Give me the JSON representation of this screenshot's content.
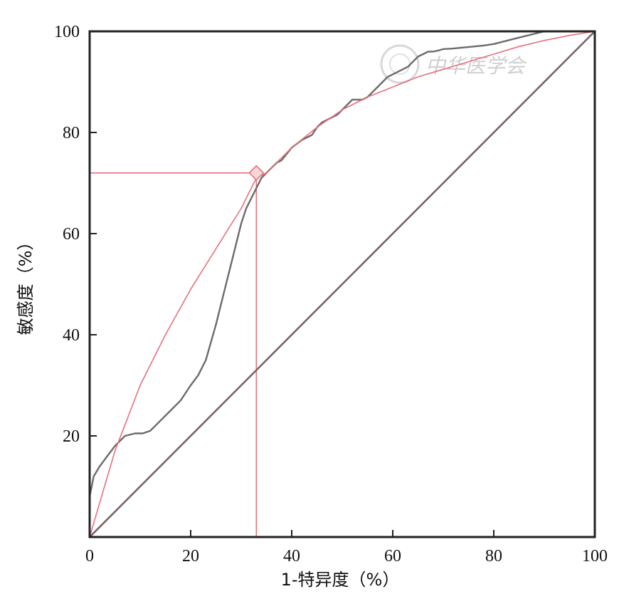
{
  "chart_data": {
    "type": "line",
    "title": "",
    "xlabel": "1-特异度（%）",
    "ylabel": "敏感度（%）",
    "xlim": [
      0,
      100
    ],
    "ylim": [
      0,
      100
    ],
    "x_ticks": [
      0,
      20,
      40,
      60,
      80,
      100
    ],
    "y_ticks": [
      20,
      40,
      60,
      80,
      100
    ],
    "grid": false,
    "watermark": "中华医学会",
    "colors": {
      "empirical": "#6e6a6a",
      "fitted": "#e8707a",
      "reference": "#7a6468",
      "cutoff": "#e8707a",
      "axis": "#222222"
    },
    "series": [
      {
        "style": "empirical",
        "x": [
          0,
          0.8,
          2,
          3.5,
          5,
          7,
          9,
          10.5,
          12,
          14,
          16,
          18,
          20,
          21.5,
          23,
          25,
          27,
          28.5,
          30,
          31,
          32,
          33,
          34,
          35,
          36,
          37,
          38,
          40,
          42,
          44,
          45,
          46,
          47,
          48,
          49,
          50,
          51,
          52,
          53,
          54,
          55,
          56,
          57,
          58,
          59,
          60,
          61,
          62,
          63,
          64,
          65,
          66,
          67,
          68,
          69,
          70,
          72,
          74,
          76,
          78,
          80,
          82,
          84,
          86,
          88,
          90,
          92,
          93
        ],
        "y": [
          8,
          12,
          14,
          16,
          18,
          20,
          20.5,
          20.5,
          21,
          23,
          25,
          27,
          30,
          32,
          35,
          42,
          50,
          56,
          62,
          65,
          67,
          69,
          71,
          72,
          73,
          74,
          74.5,
          77,
          78.5,
          79.5,
          81,
          82,
          82.5,
          83,
          83.5,
          84.5,
          85.5,
          86.5,
          86.5,
          86.5,
          87,
          88,
          89,
          90,
          91,
          91.5,
          92,
          92.5,
          93,
          94,
          95,
          95.5,
          96,
          96,
          96.2,
          96.5,
          96.6,
          96.8,
          97,
          97.2,
          97.5,
          98,
          98.5,
          99,
          99.5,
          100,
          100,
          100
        ]
      },
      {
        "style": "fitted",
        "x": [
          0,
          5,
          10,
          15,
          20,
          25,
          30,
          33,
          35,
          40,
          45,
          50,
          55,
          60,
          65,
          70,
          75,
          80,
          85,
          90,
          95,
          100
        ],
        "y": [
          0,
          17,
          30,
          40,
          49,
          57,
          65,
          71,
          72,
          77,
          81,
          84.5,
          87,
          89,
          91,
          92.5,
          94,
          95.5,
          97,
          98.2,
          99.2,
          100
        ]
      },
      {
        "style": "reference",
        "x": [
          0,
          100
        ],
        "y": [
          0,
          100
        ]
      }
    ],
    "optimal_point": {
      "x": 33,
      "y": 72
    }
  }
}
